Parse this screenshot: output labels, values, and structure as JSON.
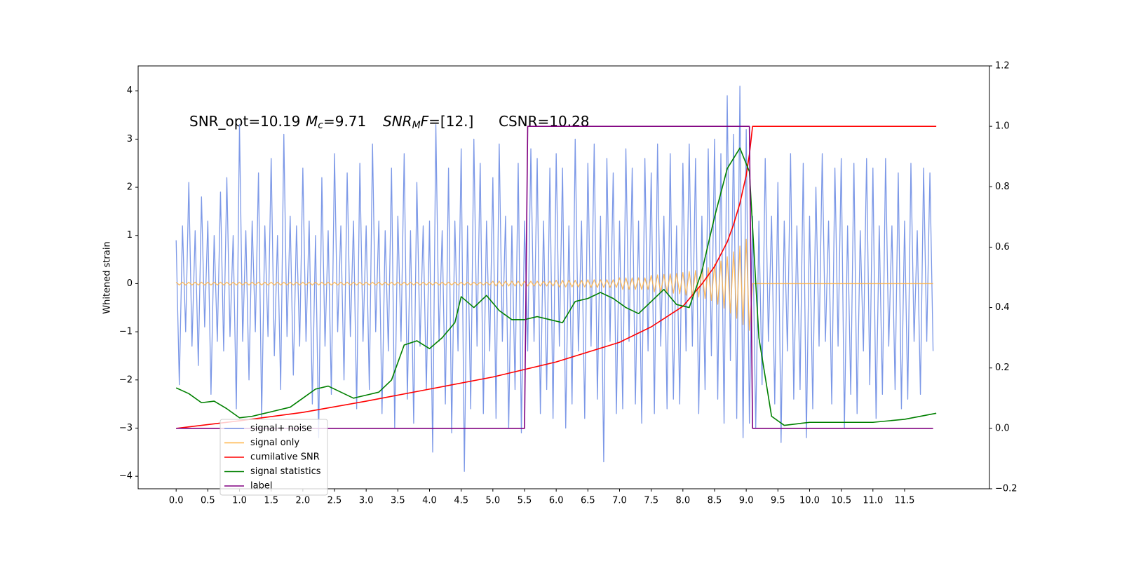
{
  "chart_data": {
    "type": "line",
    "ylabel": "Whitened strain",
    "annotation": [
      "SNR_opt=10.19",
      "M",
      "c",
      "=9.71",
      "SNR",
      "M",
      "F",
      "=[12.]",
      "CSNR=10.28"
    ],
    "xlim": [
      -0.6,
      12.84
    ],
    "ylim": [
      -4.26,
      4.52
    ],
    "y2lim": [
      -0.2,
      1.2
    ],
    "xticks": [
      {
        "value": 0,
        "label": "0.0"
      },
      {
        "value": 0.5,
        "label": "0.5"
      },
      {
        "value": 1,
        "label": "1.0"
      },
      {
        "value": 1.5,
        "label": "1.5"
      },
      {
        "value": 2,
        "label": "2.0"
      },
      {
        "value": 2.5,
        "label": "2.5"
      },
      {
        "value": 3,
        "label": "3.0"
      },
      {
        "value": 3.5,
        "label": "3.5"
      },
      {
        "value": 4,
        "label": "4.0"
      },
      {
        "value": 4.5,
        "label": "4.5"
      },
      {
        "value": 5,
        "label": "5.0"
      },
      {
        "value": 5.5,
        "label": "5.5"
      },
      {
        "value": 6,
        "label": "6.0"
      },
      {
        "value": 6.5,
        "label": "6.5"
      },
      {
        "value": 7,
        "label": "7.0"
      },
      {
        "value": 7.5,
        "label": "7.5"
      },
      {
        "value": 8,
        "label": "8.0"
      },
      {
        "value": 8.5,
        "label": "8.5"
      },
      {
        "value": 9,
        "label": "9.0"
      },
      {
        "value": 9.5,
        "label": "9.5"
      },
      {
        "value": 10,
        "label": "10.0"
      },
      {
        "value": 10.5,
        "label": "10.5"
      },
      {
        "value": 11,
        "label": "11.0"
      },
      {
        "value": 11.5,
        "label": "11.5"
      }
    ],
    "yticks": [
      {
        "value": -4,
        "label": "−4"
      },
      {
        "value": -3,
        "label": "−3"
      },
      {
        "value": -2,
        "label": "−2"
      },
      {
        "value": -1,
        "label": "−1"
      },
      0,
      1,
      2,
      3,
      4
    ],
    "y2ticks": [
      {
        "value": -0.2,
        "label": "−0.2"
      },
      {
        "value": 0,
        "label": "0.0"
      },
      0.2,
      0.4,
      0.6,
      0.8,
      {
        "value": 1,
        "label": "1.0"
      },
      1.2
    ],
    "legend": "lower left",
    "x": [
      0,
      0.05,
      0.1,
      0.15,
      0.2,
      0.25,
      0.3,
      0.35,
      0.4,
      0.45,
      0.5,
      0.55,
      0.6,
      0.65,
      0.7,
      0.75,
      0.8,
      0.85,
      0.9,
      0.95,
      1,
      1.05,
      1.1,
      1.15,
      1.2,
      1.25,
      1.3,
      1.35,
      1.4,
      1.45,
      1.5,
      1.55,
      1.6,
      1.65,
      1.7,
      1.75,
      1.8,
      1.85,
      1.9,
      1.95,
      2,
      2.05,
      2.1,
      2.15,
      2.2,
      2.25,
      2.3,
      2.35,
      2.4,
      2.45,
      2.5,
      2.55,
      2.6,
      2.65,
      2.7,
      2.75,
      2.8,
      2.85,
      2.9,
      2.95,
      3,
      3.05,
      3.1,
      3.15,
      3.2,
      3.25,
      3.3,
      3.35,
      3.4,
      3.45,
      3.5,
      3.55,
      3.6,
      3.65,
      3.7,
      3.75,
      3.8,
      3.85,
      3.9,
      3.95,
      4,
      4.05,
      4.1,
      4.15,
      4.2,
      4.25,
      4.3,
      4.35,
      4.4,
      4.45,
      4.5,
      4.55,
      4.6,
      4.65,
      4.7,
      4.75,
      4.8,
      4.85,
      4.9,
      4.95,
      5,
      5.05,
      5.1,
      5.15,
      5.2,
      5.25,
      5.3,
      5.35,
      5.4,
      5.45,
      5.5,
      5.55,
      5.6,
      5.65,
      5.7,
      5.75,
      5.8,
      5.85,
      5.9,
      5.95,
      6,
      6.05,
      6.1,
      6.15,
      6.2,
      6.25,
      6.3,
      6.35,
      6.4,
      6.45,
      6.5,
      6.55,
      6.6,
      6.65,
      6.7,
      6.75,
      6.8,
      6.85,
      6.9,
      6.95,
      7,
      7.05,
      7.1,
      7.15,
      7.2,
      7.25,
      7.3,
      7.35,
      7.4,
      7.45,
      7.5,
      7.55,
      7.6,
      7.65,
      7.7,
      7.75,
      7.8,
      7.85,
      7.9,
      7.95,
      8,
      8.05,
      8.1,
      8.15,
      8.2,
      8.25,
      8.3,
      8.35,
      8.4,
      8.45,
      8.5,
      8.55,
      8.6,
      8.65,
      8.7,
      8.75,
      8.8,
      8.85,
      8.9,
      8.95,
      9,
      9.05,
      9.1,
      9.15,
      9.2,
      9.25,
      9.3,
      9.35,
      9.4,
      9.45,
      9.5,
      9.55,
      9.6,
      9.65,
      9.7,
      9.75,
      9.8,
      9.85,
      9.9,
      9.95,
      10,
      10.05,
      10.1,
      10.15,
      10.2,
      10.25,
      10.3,
      10.35,
      10.4,
      10.45,
      10.5,
      10.55,
      10.6,
      10.65,
      10.7,
      10.75,
      10.8,
      10.85,
      10.9,
      10.95,
      11,
      11.05,
      11.1,
      11.15,
      11.2,
      11.25,
      11.3,
      11.35,
      11.4,
      11.45,
      11.5,
      11.55,
      11.6,
      11.65,
      11.7,
      11.75,
      11.8,
      11.85,
      11.9,
      11.95
    ],
    "series": [
      {
        "name": "signal+ noise",
        "color": "#7592e6",
        "values": [
          0.9,
          -2.1,
          1.2,
          -1.0,
          2.1,
          -1.3,
          1.1,
          -1.7,
          1.8,
          -0.9,
          1.3,
          -2.3,
          1.0,
          -1.2,
          1.9,
          -1.4,
          2.2,
          -1.1,
          1.0,
          -2.6,
          3.3,
          -1.2,
          1.1,
          -2.0,
          1.3,
          -1.0,
          2.3,
          -2.8,
          1.2,
          -1.1,
          2.6,
          -1.5,
          1.0,
          -2.2,
          3.1,
          -1.1,
          1.4,
          -1.9,
          1.2,
          -1.3,
          2.4,
          -1.2,
          1.3,
          -2.5,
          1.0,
          -3.2,
          2.2,
          -1.3,
          1.1,
          -2.3,
          2.7,
          -1.0,
          1.2,
          -2.0,
          2.3,
          -1.1,
          1.3,
          -2.6,
          2.5,
          -1.2,
          1.2,
          -2.2,
          2.9,
          -1.0,
          1.3,
          -2.7,
          1.1,
          -1.4,
          2.4,
          -3.0,
          1.4,
          -1.2,
          2.7,
          -2.4,
          1.1,
          -2.9,
          2.1,
          -1.3,
          1.2,
          -2.2,
          1.3,
          -3.5,
          3.3,
          -1.2,
          1.1,
          -2.5,
          2.4,
          -3.1,
          1.3,
          -1.4,
          2.8,
          -3.9,
          1.2,
          -2.6,
          3.0,
          -1.3,
          2.5,
          -2.7,
          1.3,
          -1.4,
          2.2,
          -2.8,
          2.9,
          -1.2,
          1.4,
          -3.0,
          1.2,
          -2.2,
          2.5,
          -3.1,
          1.3,
          -1.4,
          2.8,
          -1.2,
          2.6,
          -2.7,
          1.3,
          -2.2,
          2.4,
          -2.8,
          2.7,
          -1.3,
          2.4,
          -3.0,
          1.2,
          -2.5,
          3.0,
          -1.4,
          1.3,
          -2.8,
          2.5,
          -1.3,
          2.9,
          -2.4,
          1.4,
          -3.7,
          2.6,
          -1.2,
          2.3,
          -2.7,
          1.3,
          -2.6,
          2.8,
          -1.2,
          2.4,
          -2.5,
          1.3,
          -2.9,
          2.6,
          -1.4,
          2.3,
          -2.7,
          2.9,
          -1.3,
          1.4,
          -2.6,
          2.7,
          -2.4,
          1.2,
          -2.5,
          2.5,
          -1.4,
          2.9,
          -1.3,
          2.6,
          -2.7,
          1.4,
          -2.2,
          2.8,
          -1.5,
          3.0,
          -2.4,
          2.7,
          -2.9,
          3.9,
          -1.6,
          3.1,
          -2.8,
          4.1,
          -3.2,
          3.2,
          -2.9,
          1.4,
          -3.0,
          1.3,
          -2.1,
          2.6,
          -1.2,
          1.4,
          -2.5,
          2.1,
          -3.3,
          1.3,
          -1.4,
          2.7,
          -2.4,
          1.2,
          -2.2,
          2.5,
          -3.2,
          1.4,
          -2.6,
          2.0,
          -1.3,
          2.7,
          -1.2,
          1.3,
          -2.5,
          2.4,
          -1.3,
          2.6,
          -3.0,
          1.2,
          -2.3,
          2.5,
          -2.7,
          1.1,
          -1.4,
          2.6,
          -2.1,
          2.4,
          -2.8,
          1.2,
          -2.3,
          2.6,
          -1.3,
          1.2,
          -2.2,
          2.3,
          -2.6,
          1.3,
          -2.4,
          2.5,
          -1.2,
          1.1,
          -2.3,
          2.4,
          -1.2,
          2.3,
          -1.4
        ]
      },
      {
        "name": "signal only",
        "color": "#ffb347",
        "values": [
          0.03,
          -0.03,
          0.03,
          -0.03,
          0.03,
          -0.03,
          0.03,
          -0.03,
          0.03,
          -0.03,
          0.03,
          -0.03,
          0.03,
          -0.03,
          0.03,
          -0.03,
          0.03,
          -0.03,
          0.03,
          -0.03,
          0.03,
          -0.03,
          0.03,
          -0.03,
          0.03,
          -0.03,
          0.03,
          -0.03,
          0.03,
          -0.03,
          0.03,
          -0.03,
          0.03,
          -0.03,
          0.03,
          -0.03,
          0.03,
          -0.03,
          0.03,
          -0.03,
          0.03,
          -0.03,
          0.03,
          -0.03,
          0.03,
          -0.03,
          0.03,
          -0.03,
          0.03,
          -0.03,
          0.03,
          -0.03,
          0.03,
          -0.03,
          0.03,
          -0.03,
          0.03,
          -0.03,
          0.03,
          -0.03,
          0.03,
          -0.03,
          0.03,
          -0.03,
          0.03,
          -0.03,
          0.03,
          -0.03,
          0.03,
          -0.03,
          0.03,
          -0.03,
          0.03,
          -0.03,
          0.03,
          -0.03,
          0.03,
          -0.03,
          0.03,
          -0.03,
          0.03,
          -0.03,
          0.03,
          -0.03,
          0.03,
          -0.03,
          0.03,
          -0.03,
          0.03,
          -0.03,
          0.03,
          -0.03,
          0.03,
          -0.03,
          0.03,
          -0.03,
          0.03,
          -0.03,
          0.03,
          -0.03,
          0.05,
          -0.05,
          0.05,
          -0.05,
          0.05,
          -0.05,
          0.05,
          -0.05,
          0.05,
          -0.05,
          0.05,
          -0.05,
          0.05,
          -0.05,
          0.05,
          -0.05,
          0.05,
          -0.05,
          0.05,
          -0.05,
          0.07,
          -0.07,
          0.07,
          -0.07,
          0.07,
          -0.07,
          0.07,
          -0.07,
          0.07,
          -0.07,
          0.08,
          -0.08,
          0.08,
          -0.08,
          0.08,
          -0.08,
          0.08,
          -0.08,
          0.08,
          -0.08,
          0.12,
          -0.12,
          0.12,
          -0.12,
          0.12,
          -0.12,
          0.12,
          -0.12,
          0.12,
          -0.12,
          0.17,
          -0.17,
          0.18,
          -0.18,
          0.19,
          -0.19,
          0.2,
          -0.2,
          0.21,
          -0.21,
          0.23,
          -0.24,
          0.25,
          -0.26,
          0.27,
          -0.28,
          0.3,
          -0.31,
          0.33,
          -0.35,
          0.4,
          -0.43,
          0.47,
          -0.51,
          0.56,
          -0.61,
          0.66,
          -0.72,
          0.78,
          -0.85,
          0.92,
          -0.97,
          0,
          0,
          0,
          0,
          0,
          0,
          0,
          0,
          0,
          0,
          0,
          0,
          0,
          0,
          0,
          0,
          0,
          0,
          0,
          0,
          0,
          0,
          0,
          0,
          0,
          0,
          0,
          0,
          0,
          0,
          0,
          0,
          0,
          0,
          0,
          0,
          0,
          0,
          0,
          0,
          0,
          0,
          0,
          0,
          0,
          0,
          0,
          0,
          0,
          0,
          0,
          0,
          0,
          0,
          0,
          0,
          0,
          0
        ]
      },
      {
        "name": "cumilative SNR",
        "color": "#ff0000",
        "axis": "y2",
        "x": [
          0,
          1,
          2,
          3,
          4,
          5,
          5.5,
          6,
          7,
          7.5,
          8,
          8.3,
          8.5,
          8.7,
          8.8,
          8.9,
          9.0,
          9.05,
          9.1,
          10,
          11,
          12
        ],
        "values": [
          0,
          0.025,
          0.053,
          0.09,
          0.13,
          0.17,
          0.195,
          0.22,
          0.285,
          0.336,
          0.404,
          0.478,
          0.536,
          0.617,
          0.675,
          0.745,
          0.838,
          0.907,
          1.0,
          1.0,
          1.0,
          1.0
        ]
      },
      {
        "name": "signal statistics",
        "color": "#008000",
        "axis": "y2",
        "x": [
          0,
          0.2,
          0.4,
          0.6,
          0.8,
          1.0,
          1.2,
          1.4,
          1.6,
          1.8,
          2.0,
          2.2,
          2.4,
          2.6,
          2.8,
          3.0,
          3.2,
          3.4,
          3.6,
          3.8,
          4.0,
          4.2,
          4.4,
          4.5,
          4.7,
          4.9,
          5.1,
          5.3,
          5.5,
          5.7,
          5.9,
          6.1,
          6.3,
          6.5,
          6.7,
          6.9,
          7.1,
          7.3,
          7.5,
          7.7,
          7.9,
          8.1,
          8.3,
          8.5,
          8.7,
          8.9,
          9.05,
          9.2,
          9.4,
          9.6,
          9.8,
          10.0,
          10.5,
          11.0,
          11.5,
          12.0
        ],
        "values": [
          0.134,
          0.115,
          0.085,
          0.09,
          0.065,
          0.035,
          0.04,
          0.05,
          0.06,
          0.07,
          0.1,
          0.13,
          0.14,
          0.12,
          0.1,
          0.11,
          0.12,
          0.16,
          0.276,
          0.29,
          0.264,
          0.3,
          0.35,
          0.436,
          0.4,
          0.44,
          0.39,
          0.36,
          0.36,
          0.37,
          0.36,
          0.35,
          0.42,
          0.43,
          0.45,
          0.43,
          0.4,
          0.38,
          0.42,
          0.46,
          0.41,
          0.4,
          0.52,
          0.7,
          0.86,
          0.928,
          0.85,
          0.3,
          0.04,
          0.01,
          0.015,
          0.02,
          0.02,
          0.02,
          0.03,
          0.05
        ]
      },
      {
        "name": "label",
        "color": "#800080",
        "axis": "y2",
        "x": [
          0,
          5.5,
          5.55,
          9.05,
          9.1,
          11.95
        ],
        "values": [
          0,
          0,
          1,
          1,
          0,
          0
        ]
      }
    ]
  }
}
